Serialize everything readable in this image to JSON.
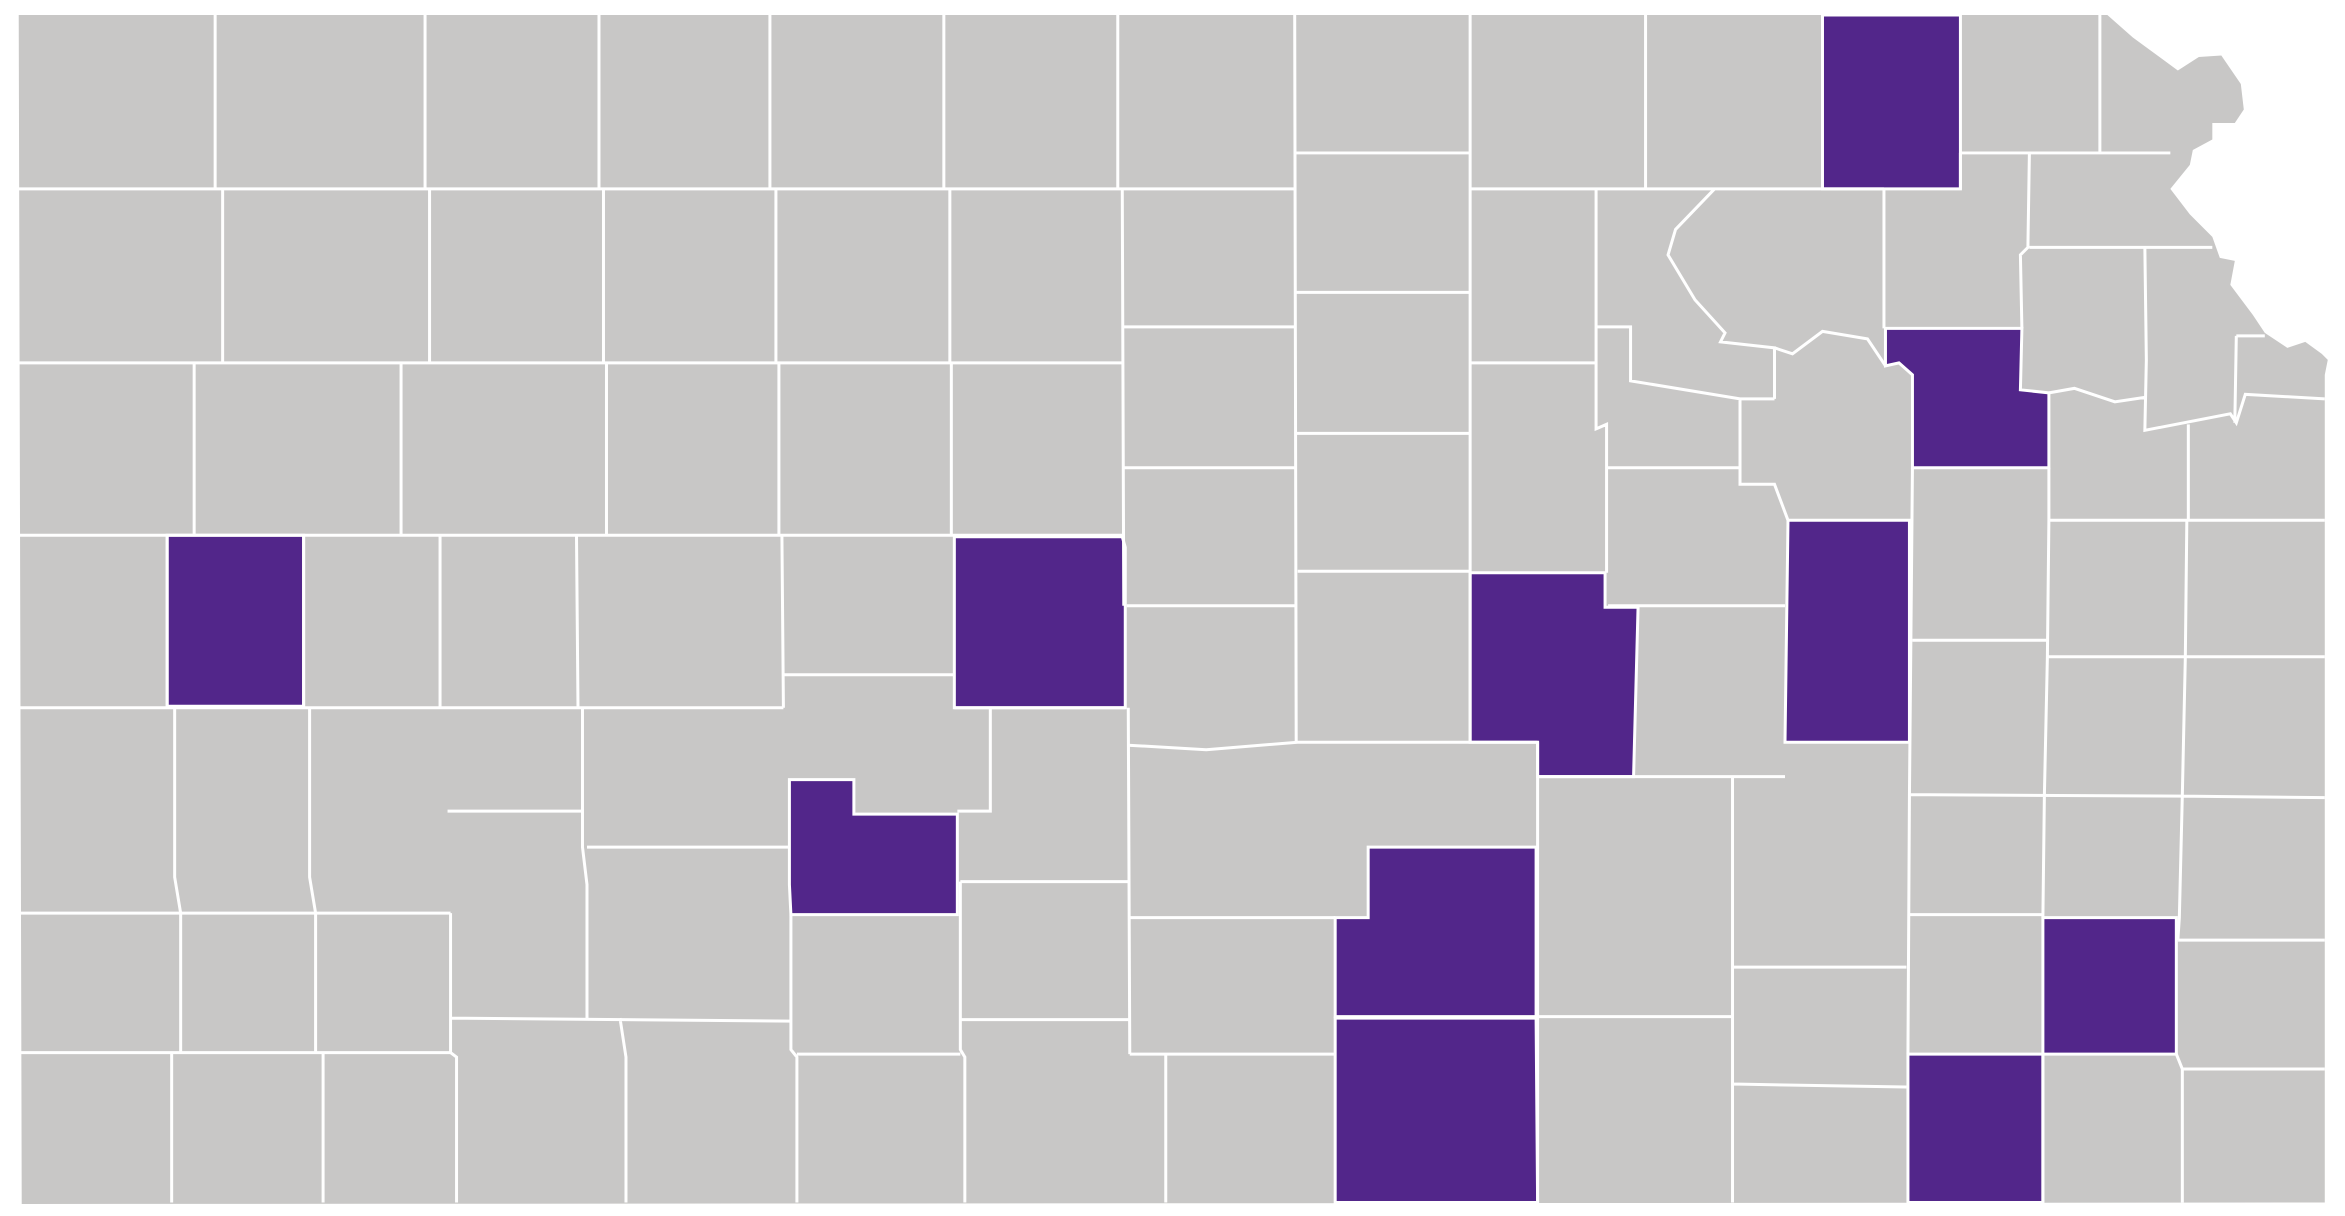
{
  "map": {
    "base_color": "#c8c7c6",
    "highlight_color": "#52268a",
    "border_color": "#ffffff"
  }
}
